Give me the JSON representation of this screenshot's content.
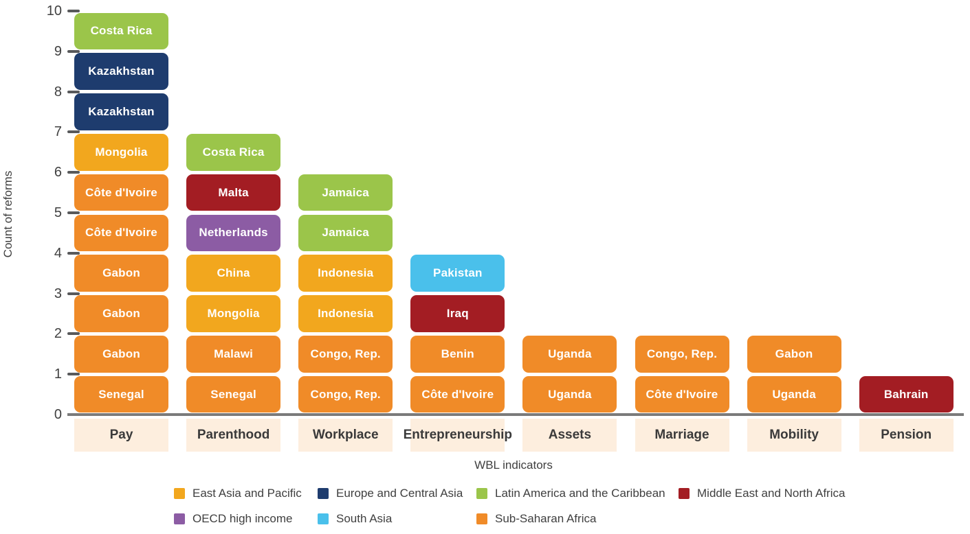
{
  "chart_data": {
    "type": "bar",
    "variant": "stacked-unit-blocks",
    "title": "",
    "xlabel": "WBL indicators",
    "ylabel": "Count of reforms",
    "ylim": [
      0,
      10
    ],
    "ytick_labels": [
      "0",
      "1",
      "2",
      "3",
      "4",
      "5",
      "6",
      "7",
      "8",
      "9",
      "10"
    ],
    "grid": false,
    "legend_position": "bottom",
    "categories": [
      "Pay",
      "Parenthood",
      "Workplace",
      "Entrepreneurship",
      "Assets",
      "Marriage",
      "Mobility",
      "Pension"
    ],
    "totals": [
      10,
      7,
      6,
      4,
      2,
      2,
      2,
      1
    ],
    "columns": [
      {
        "indicator": "Pay",
        "blocks_bottom_to_top": [
          {
            "country": "Senegal",
            "region": "SSA"
          },
          {
            "country": "Gabon",
            "region": "SSA"
          },
          {
            "country": "Gabon",
            "region": "SSA"
          },
          {
            "country": "Gabon",
            "region": "SSA"
          },
          {
            "country": "Côte d'Ivoire",
            "region": "SSA"
          },
          {
            "country": "Côte d'Ivoire",
            "region": "SSA"
          },
          {
            "country": "Mongolia",
            "region": "EAP"
          },
          {
            "country": "Kazakhstan",
            "region": "ECA"
          },
          {
            "country": "Kazakhstan",
            "region": "ECA"
          },
          {
            "country": "Costa Rica",
            "region": "LAC"
          }
        ]
      },
      {
        "indicator": "Parenthood",
        "blocks_bottom_to_top": [
          {
            "country": "Senegal",
            "region": "SSA"
          },
          {
            "country": "Malawi",
            "region": "SSA"
          },
          {
            "country": "Mongolia",
            "region": "EAP"
          },
          {
            "country": "China",
            "region": "EAP"
          },
          {
            "country": "Netherlands",
            "region": "OECD"
          },
          {
            "country": "Malta",
            "region": "MENA"
          },
          {
            "country": "Costa Rica",
            "region": "LAC"
          }
        ]
      },
      {
        "indicator": "Workplace",
        "blocks_bottom_to_top": [
          {
            "country": "Congo, Rep.",
            "region": "SSA"
          },
          {
            "country": "Congo, Rep.",
            "region": "SSA"
          },
          {
            "country": "Indonesia",
            "region": "EAP"
          },
          {
            "country": "Indonesia",
            "region": "EAP"
          },
          {
            "country": "Jamaica",
            "region": "LAC"
          },
          {
            "country": "Jamaica",
            "region": "LAC"
          }
        ]
      },
      {
        "indicator": "Entrepreneurship",
        "blocks_bottom_to_top": [
          {
            "country": "Côte d'Ivoire",
            "region": "SSA"
          },
          {
            "country": "Benin",
            "region": "SSA"
          },
          {
            "country": "Iraq",
            "region": "MENA"
          },
          {
            "country": "Pakistan",
            "region": "SA"
          }
        ]
      },
      {
        "indicator": "Assets",
        "blocks_bottom_to_top": [
          {
            "country": "Uganda",
            "region": "SSA"
          },
          {
            "country": "Uganda",
            "region": "SSA"
          }
        ]
      },
      {
        "indicator": "Marriage",
        "blocks_bottom_to_top": [
          {
            "country": "Côte d'Ivoire",
            "region": "SSA"
          },
          {
            "country": "Congo, Rep.",
            "region": "SSA"
          }
        ]
      },
      {
        "indicator": "Mobility",
        "blocks_bottom_to_top": [
          {
            "country": "Uganda",
            "region": "SSA"
          },
          {
            "country": "Gabon",
            "region": "SSA"
          }
        ]
      },
      {
        "indicator": "Pension",
        "blocks_bottom_to_top": [
          {
            "country": "Bahrain",
            "region": "MENA"
          }
        ]
      }
    ],
    "regions": {
      "EAP": {
        "label": "East Asia and Pacific",
        "color": "#F2A71E"
      },
      "ECA": {
        "label": "Europe and Central Asia",
        "color": "#1E3C6E"
      },
      "LAC": {
        "label": "Latin America and the Caribbean",
        "color": "#9BC54A"
      },
      "MENA": {
        "label": "Middle East and North Africa",
        "color": "#A31D23"
      },
      "OECD": {
        "label": "OECD high income",
        "color": "#8C5CA4"
      },
      "SA": {
        "label": "South Asia",
        "color": "#4AC0EB"
      },
      "SSA": {
        "label": "Sub-Saharan Africa",
        "color": "#F08B28"
      }
    },
    "legend_rows": [
      [
        "EAP",
        "ECA",
        "LAC",
        "MENA"
      ],
      [
        "OECD",
        "SA",
        "SSA"
      ]
    ]
  },
  "colors": {
    "category_band": "#FDEEDE",
    "axis_line": "#7A7A7A",
    "tick_text": "#404040",
    "label_text": "#3F3F3F",
    "block_text": "#FFFFFF"
  }
}
